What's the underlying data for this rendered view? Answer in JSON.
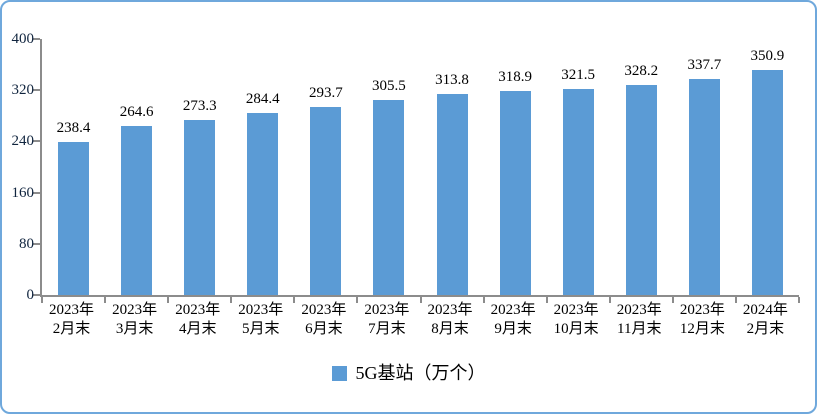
{
  "chart_data": {
    "type": "bar",
    "title": "",
    "xlabel": "",
    "ylabel": "",
    "categories": [
      "2023年2月末",
      "2023年3月末",
      "2023年4月末",
      "2023年5月末",
      "2023年6月末",
      "2023年7月末",
      "2023年8月末",
      "2023年9月末",
      "2023年10月末",
      "2023年11月末",
      "2023年12月末",
      "2024年2月末"
    ],
    "values": [
      238.4,
      264.6,
      273.3,
      284.4,
      293.7,
      305.5,
      313.8,
      318.9,
      321.5,
      328.2,
      337.7,
      350.9
    ],
    "ylim": [
      0,
      400
    ],
    "yticks": [
      0,
      80,
      160,
      240,
      320,
      400
    ],
    "grid": false,
    "data_labels": true,
    "legend": [
      "5G基站（万个）"
    ],
    "legend_position": "bottom"
  },
  "colors": {
    "bar": "#5B9BD5",
    "axis": "#8C8C8C",
    "border": "#6FA8DC",
    "tick_text": "#10243E",
    "label_text": "#000000"
  }
}
